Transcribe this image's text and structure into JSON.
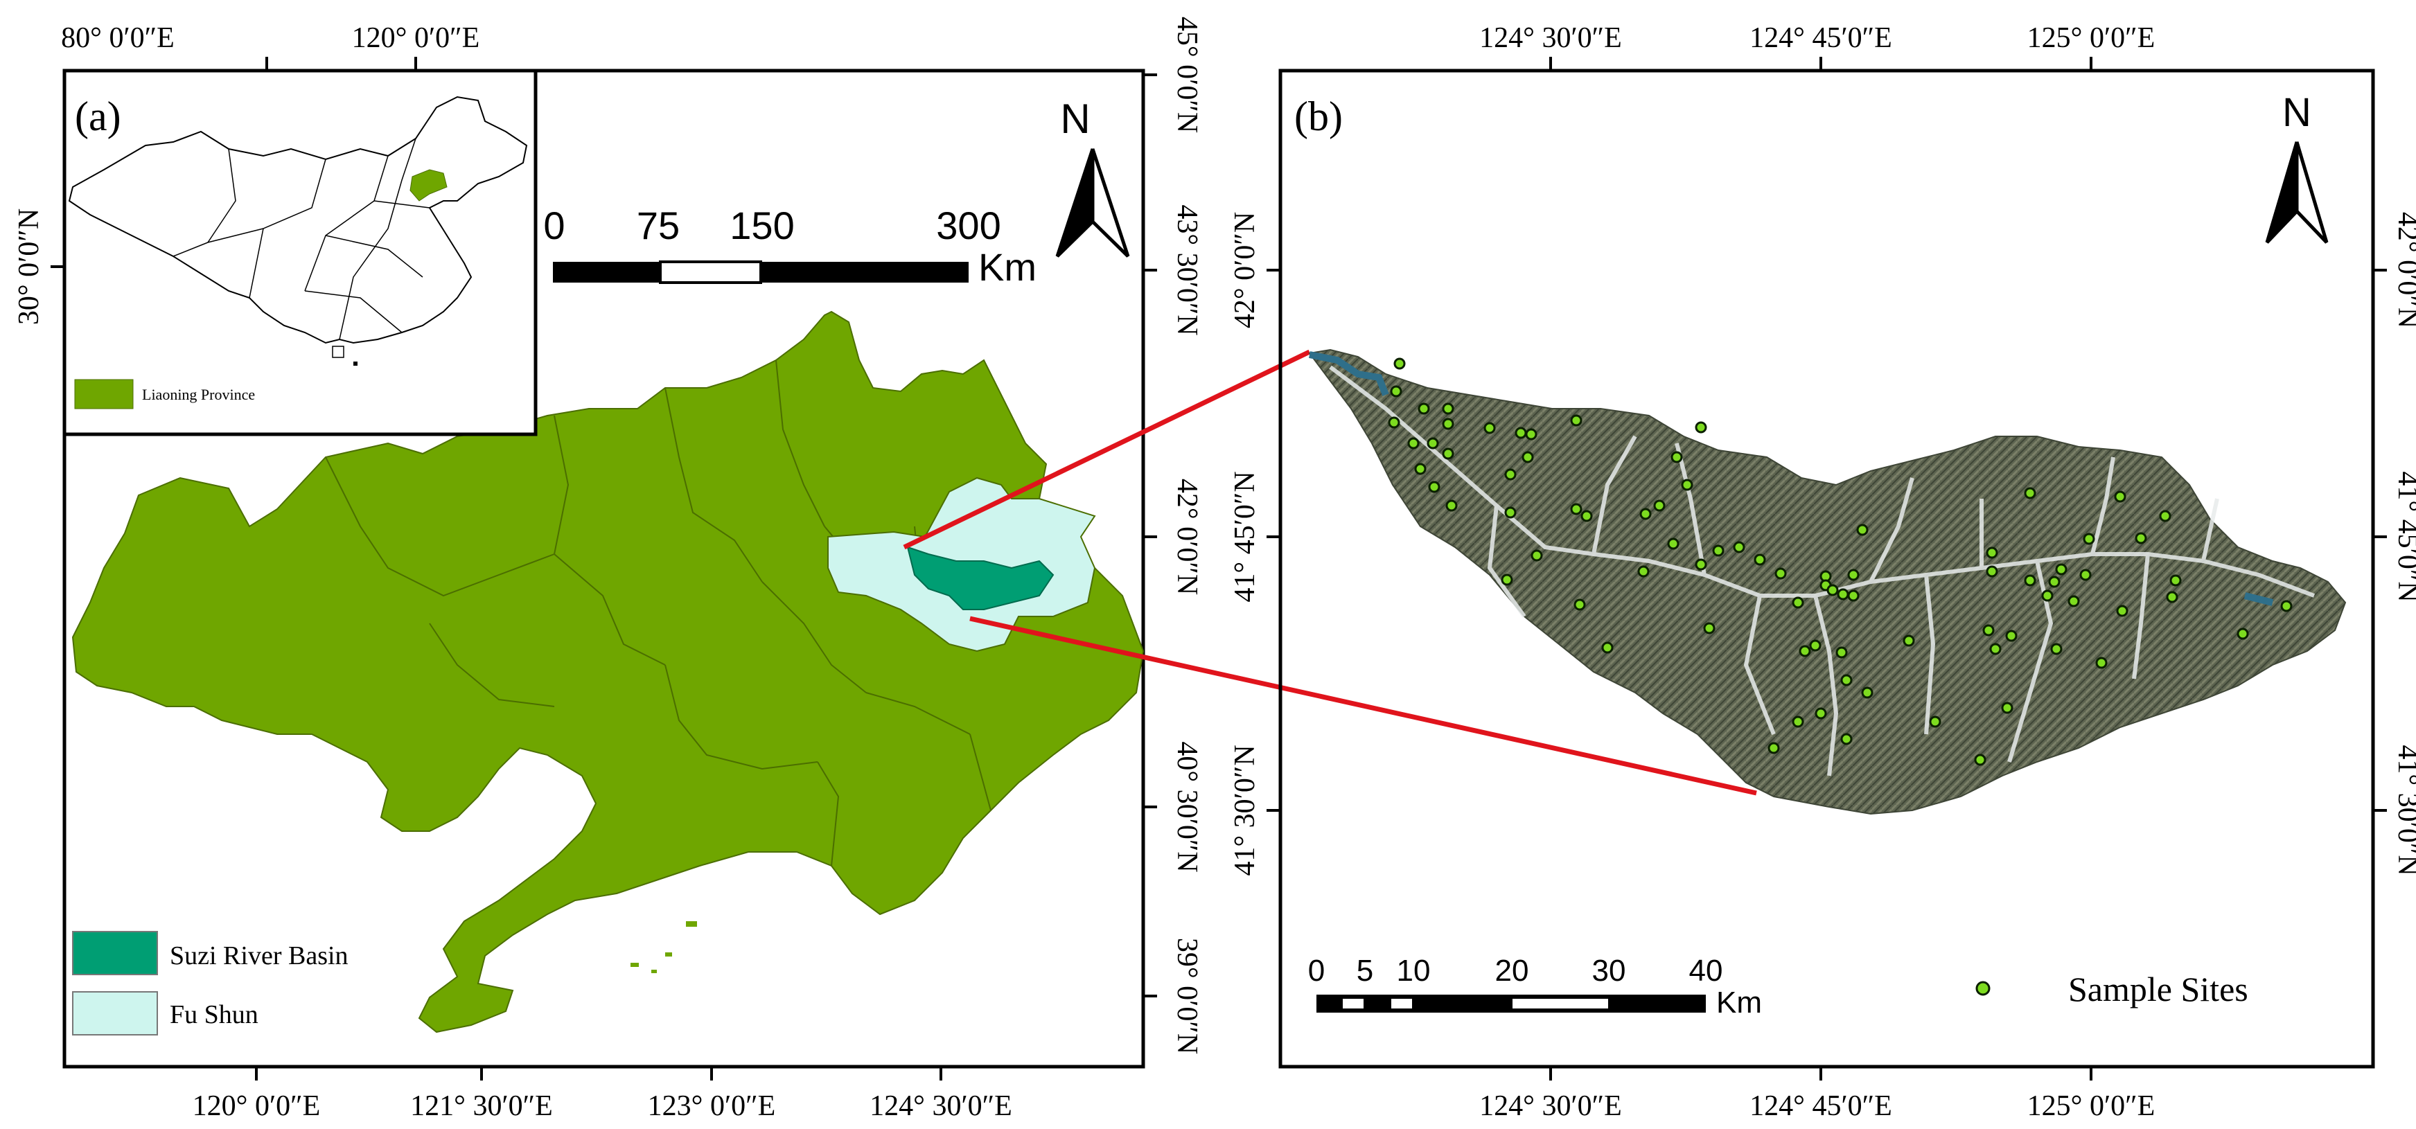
{
  "panel_a": {
    "label": "(a)",
    "top_ticks": [
      "80° 0′0″E",
      "120° 0′0″E"
    ],
    "bottom_ticks": [
      "120° 0′0″E",
      "121° 30′0″E",
      "123° 0′0″E",
      "124° 30′0″E"
    ],
    "left_ticks": [
      "30° 0′0″N"
    ],
    "right_ticks": [
      "45° 0′0″N",
      "43° 30′0″N",
      "42° 0′0″N",
      "40° 30′0″N",
      "39° 0′0″N"
    ],
    "inset_legend": "Liaoning Province",
    "scale_labels": [
      "0",
      "75",
      "150",
      "300"
    ],
    "scale_unit": "Km",
    "north": "N",
    "legend": [
      {
        "label": "Suzi River Basin",
        "color": "#009e73"
      },
      {
        "label": "Fu Shun",
        "color": "#cef5ee"
      }
    ],
    "province_color": "#6fa600"
  },
  "panel_b": {
    "label": "(b)",
    "top_ticks": [
      "124° 30′0″E",
      "124° 45′0″E",
      "125° 0′0″E"
    ],
    "bottom_ticks": [
      "124° 30′0″E",
      "124° 45′0″E",
      "125° 0′0″E"
    ],
    "left_ticks": [
      "42° 0′0″N",
      "41° 45′0″N",
      "41° 30′0″N"
    ],
    "right_ticks": [
      "42° 0′0″N",
      "41° 45′0″N",
      "41° 30′0″N"
    ],
    "scale_labels": [
      "0",
      "5",
      "10",
      "20",
      "30",
      "40"
    ],
    "scale_unit": "Km",
    "north": "N",
    "legend_label": "Sample Sites",
    "site_color": "#7ddc1f"
  }
}
